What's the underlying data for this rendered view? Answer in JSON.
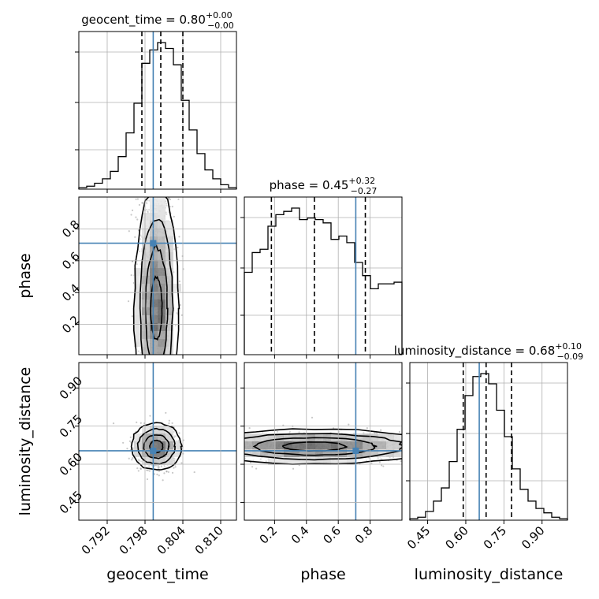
{
  "colors": {
    "truth": "#4682b4",
    "hist": "#000000",
    "grid": "#b0b0b0"
  },
  "chart_data": {
    "type": "corner",
    "parameters": [
      "geocent_time",
      "phase",
      "luminosity_distance"
    ],
    "truths": {
      "geocent_time": 0.7993,
      "phase": 0.71,
      "luminosity_distance": 0.653
    },
    "titles": [
      {
        "name": "geocent_time",
        "label": "geocent_time = 0.80",
        "sup": "+0.00",
        "sub": "−0.00"
      },
      {
        "name": "phase",
        "label": "phase = 0.45",
        "sup": "+0.32",
        "sub": "−0.27"
      },
      {
        "name": "luminosity_distance",
        "label": "luminosity_distance = 0.68",
        "sup": "+0.10",
        "sub": "−0.09"
      }
    ],
    "axes": {
      "geocent_time": {
        "range": [
          0.7875,
          0.8125
        ],
        "ticks": [
          0.792,
          0.798,
          0.804,
          0.81
        ],
        "tick_labels": [
          "0.792",
          "0.798",
          "0.804",
          "0.810"
        ],
        "label": "geocent_time"
      },
      "phase": {
        "range": [
          0.01,
          1.0
        ],
        "ticks": [
          0.2,
          0.4,
          0.6,
          0.8
        ],
        "tick_labels": [
          "0.2",
          "0.4",
          "0.6",
          "0.8"
        ],
        "label": "phase"
      },
      "luminosity_distance": {
        "range": [
          0.38,
          1.0
        ],
        "ticks": [
          0.45,
          0.6,
          0.75,
          0.9
        ],
        "tick_labels": [
          "0.45",
          "0.60",
          "0.75",
          "0.90"
        ],
        "label": "luminosity_distance"
      }
    },
    "diagonal": [
      {
        "name": "geocent_time",
        "quantiles": [
          0.7975,
          0.8005,
          0.804
        ],
        "hist_x": [
          0.7875,
          0.78875,
          0.79,
          0.79125,
          0.7925,
          0.79375,
          0.795,
          0.79625,
          0.7975,
          0.79875,
          0.8,
          0.80125,
          0.8025,
          0.80375,
          0.805,
          0.80625,
          0.8075,
          0.80875,
          0.81,
          0.81125,
          0.8125
        ],
        "hist_y": [
          0.01,
          0.02,
          0.04,
          0.07,
          0.12,
          0.22,
          0.38,
          0.58,
          0.85,
          0.94,
          0.99,
          0.95,
          0.84,
          0.6,
          0.4,
          0.24,
          0.13,
          0.07,
          0.03,
          0.01
        ]
      },
      {
        "name": "phase",
        "quantiles": [
          0.18,
          0.45,
          0.77
        ],
        "hist_x": [
          0.01,
          0.0595,
          0.109,
          0.1585,
          0.208,
          0.2575,
          0.307,
          0.3565,
          0.406,
          0.4555,
          0.505,
          0.5545,
          0.604,
          0.6535,
          0.703,
          0.7525,
          0.802,
          0.8515,
          0.901,
          0.9505,
          1.0
        ],
        "hist_y": [
          0.5,
          0.62,
          0.64,
          0.78,
          0.85,
          0.87,
          0.89,
          0.82,
          0.83,
          0.82,
          0.8,
          0.7,
          0.72,
          0.68,
          0.56,
          0.48,
          0.4,
          0.43,
          0.43,
          0.44
        ]
      },
      {
        "name": "luminosity_distance",
        "quantiles": [
          0.59,
          0.68,
          0.78
        ],
        "hist_x": [
          0.38,
          0.411,
          0.442,
          0.473,
          0.504,
          0.535,
          0.566,
          0.597,
          0.628,
          0.659,
          0.69,
          0.721,
          0.752,
          0.783,
          0.814,
          0.845,
          0.876,
          0.907,
          0.938,
          0.969,
          1.0
        ],
        "hist_y": [
          0.01,
          0.02,
          0.06,
          0.13,
          0.22,
          0.4,
          0.62,
          0.85,
          0.98,
          1.0,
          0.93,
          0.75,
          0.57,
          0.35,
          0.21,
          0.13,
          0.08,
          0.05,
          0.02,
          0.01
        ]
      }
    ],
    "offdiagonal": [
      {
        "x": "geocent_time",
        "y": "phase",
        "center": [
          0.7998,
          0.3
        ],
        "spread": [
          0.0028,
          0.27
        ]
      },
      {
        "x": "geocent_time",
        "y": "luminosity_distance",
        "center": [
          0.7998,
          0.67
        ],
        "spread": [
          0.0032,
          0.075
        ]
      },
      {
        "x": "phase",
        "y": "luminosity_distance",
        "center": [
          0.45,
          0.67
        ],
        "spread": [
          0.3,
          0.055
        ]
      }
    ]
  }
}
